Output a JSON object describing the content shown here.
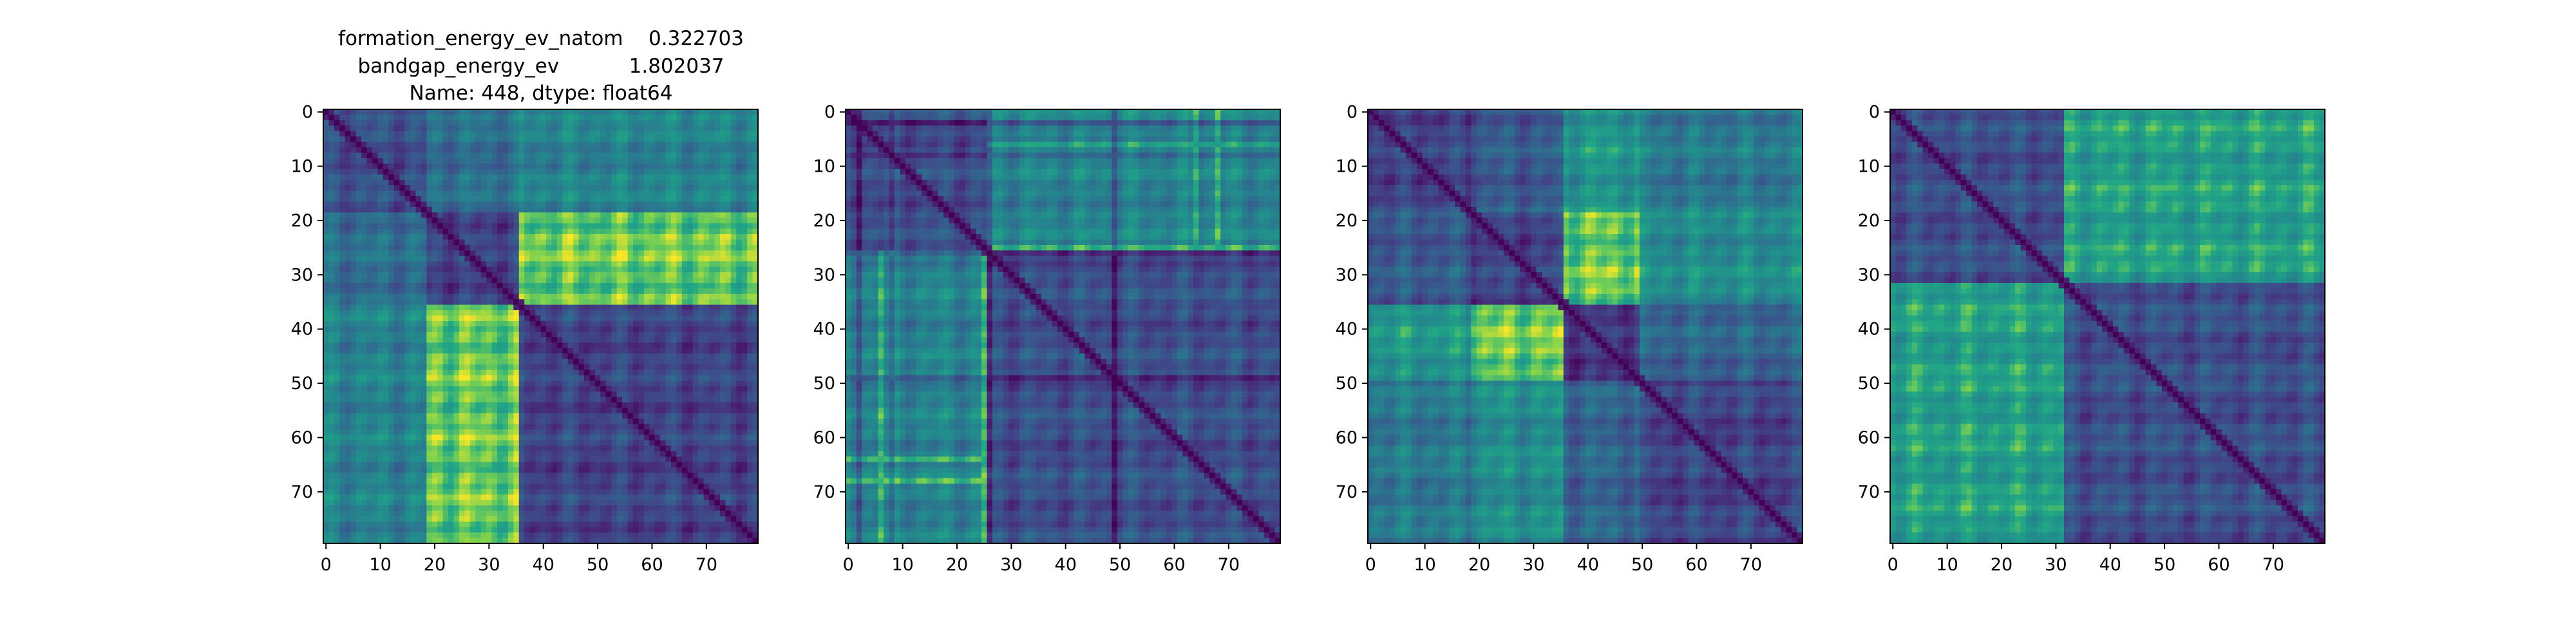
{
  "figure": {
    "title_lines": [
      "formation_energy_ev_natom    0.322703",
      "bandgap_energy_ev           1.802037",
      "Name: 448, dtype: float64"
    ]
  },
  "chart_data": [
    {
      "type": "heatmap",
      "title": "",
      "xlabel": "",
      "ylabel": "",
      "size": 80,
      "xlim": [
        -0.5,
        79.5
      ],
      "ylim": [
        79.5,
        -0.5
      ],
      "xticks": [
        0,
        10,
        20,
        30,
        40,
        50,
        60,
        70
      ],
      "yticks": [
        0,
        10,
        20,
        30,
        40,
        50,
        60,
        70
      ],
      "colormap": "viridis",
      "blocks": [
        [
          0,
          19
        ],
        [
          19,
          36
        ],
        [
          36,
          80
        ]
      ],
      "block_values": [
        [
          0.3,
          0.45,
          0.55
        ],
        [
          0.45,
          0.25,
          0.85
        ],
        [
          0.55,
          0.85,
          0.25
        ]
      ]
    },
    {
      "type": "heatmap",
      "title": "",
      "xlabel": "",
      "ylabel": "",
      "size": 80,
      "xlim": [
        -0.5,
        79.5
      ],
      "ylim": [
        79.5,
        -0.5
      ],
      "xticks": [
        0,
        10,
        20,
        30,
        40,
        50,
        60,
        70
      ],
      "yticks": [
        0,
        10,
        20,
        30,
        40,
        50,
        60,
        70
      ],
      "colormap": "viridis",
      "blocks": [
        [
          0,
          26
        ],
        [
          26,
          80
        ]
      ],
      "block_values": [
        [
          0.3,
          0.55
        ],
        [
          0.55,
          0.3
        ]
      ],
      "bright_bands": [
        6,
        25,
        64,
        68
      ],
      "dark_lines": [
        2,
        8,
        26,
        49
      ]
    },
    {
      "type": "heatmap",
      "title": "",
      "xlabel": "",
      "ylabel": "",
      "size": 80,
      "xlim": [
        -0.5,
        79.5
      ],
      "ylim": [
        79.5,
        -0.5
      ],
      "xticks": [
        0,
        10,
        20,
        30,
        40,
        50,
        60,
        70
      ],
      "yticks": [
        0,
        10,
        20,
        30,
        40,
        50,
        60,
        70
      ],
      "colormap": "viridis",
      "blocks": [
        [
          0,
          19
        ],
        [
          19,
          36
        ],
        [
          36,
          50
        ],
        [
          50,
          80
        ]
      ],
      "block_values": [
        [
          0.25,
          0.35,
          0.65,
          0.5
        ],
        [
          0.35,
          0.25,
          0.85,
          0.6
        ],
        [
          0.65,
          0.85,
          0.2,
          0.4
        ],
        [
          0.5,
          0.6,
          0.4,
          0.25
        ]
      ]
    },
    {
      "type": "heatmap",
      "title": "",
      "xlabel": "",
      "ylabel": "",
      "size": 80,
      "xlim": [
        -0.5,
        79.5
      ],
      "ylim": [
        79.5,
        -0.5
      ],
      "xticks": [
        0,
        10,
        20,
        30,
        40,
        50,
        60,
        70
      ],
      "yticks": [
        0,
        10,
        20,
        30,
        40,
        50,
        60,
        70
      ],
      "colormap": "viridis",
      "blocks": [
        [
          0,
          32
        ],
        [
          32,
          80
        ]
      ],
      "block_values": [
        [
          0.3,
          0.7
        ],
        [
          0.7,
          0.3
        ]
      ]
    }
  ]
}
